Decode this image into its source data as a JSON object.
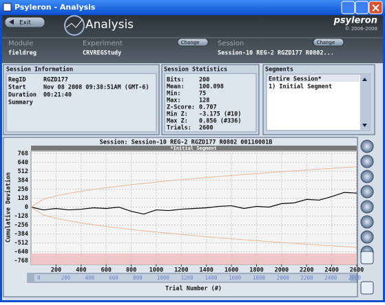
{
  "window_title": "Psyleron - Analysis",
  "header": {
    "exit": "Exit",
    "app_name": "Analysis",
    "brand": "psyleron",
    "copyright": "© 2006-2008"
  },
  "selectors": {
    "module": {
      "label": "Module",
      "value": "fieldreg"
    },
    "experiment": {
      "label": "Experiment",
      "value": "CRVREGStudy",
      "button": "Change"
    },
    "session": {
      "label": "Session",
      "value": "Session-10 REG-2 RGZD177 R0802...",
      "button": "Change"
    }
  },
  "session_info": {
    "title": "Session Information",
    "rows": [
      [
        "RegID",
        "RGZD177"
      ],
      [
        "Start",
        "Nov 08 2008 09:38:51AM (GMT-6)"
      ],
      [
        "Duration",
        "00:21:40"
      ],
      [
        "Summary"
      ]
    ]
  },
  "statistics": {
    "title": "Session Statistics",
    "rows": [
      [
        "Bits:",
        "200"
      ],
      [
        "Mean:",
        "100.098"
      ],
      [
        "Min:",
        "75"
      ],
      [
        "Max:",
        "128"
      ],
      [
        "Z-Score:",
        "0.707"
      ],
      [
        "Min Z:",
        "-3.175 (#10)"
      ],
      [
        "Max Z:",
        "0.856 (#336)"
      ],
      [
        "Trials:",
        "2600"
      ]
    ]
  },
  "segments": {
    "title": "Segments",
    "items": [
      "Entire Session*",
      "1) Initial Segment"
    ]
  },
  "scrollbar": {
    "ticks": [
      "0",
      "200",
      "400",
      "600",
      "800",
      "1000",
      "1200",
      "1400",
      "1600",
      "1800",
      "2000",
      "2200",
      "2400",
      "2600"
    ]
  },
  "chart_data": {
    "type": "line",
    "title": "Session: Session-10 REG-2 RGZD177 R0802 00110001B",
    "segment_label": "*Initial Segment",
    "x_label": "Trial Number (#)",
    "y_label": "Cumulative Deviation",
    "x": [
      0,
      100,
      200,
      300,
      400,
      500,
      600,
      700,
      800,
      900,
      1000,
      1100,
      1200,
      1300,
      1400,
      1500,
      1600,
      1700,
      1800,
      1900,
      2000,
      2100,
      2200,
      2300,
      2400,
      2500,
      2600
    ],
    "series": [
      {
        "color": "#000000",
        "values": [
          0,
          -40,
          -20,
          -40,
          -30,
          -10,
          -20,
          0,
          -60,
          -100,
          -40,
          -50,
          -30,
          -20,
          -10,
          10,
          20,
          -20,
          10,
          0,
          50,
          60,
          110,
          100,
          150,
          210,
          200
        ]
      },
      {
        "color": "#e8b896",
        "values": [
          0,
          113,
          160,
          196,
          226,
          253,
          277,
          299,
          320,
          339,
          357,
          375,
          391,
          407,
          423,
          438,
          452,
          466,
          479,
          493,
          505,
          518,
          530,
          542,
          553,
          565,
          576
        ]
      },
      {
        "color": "#e8b896",
        "values": [
          0,
          -113,
          -160,
          -196,
          -226,
          -253,
          -277,
          -299,
          -320,
          -339,
          -357,
          -375,
          -391,
          -407,
          -423,
          -438,
          -452,
          -466,
          -479,
          -493,
          -505,
          -518,
          -530,
          -542,
          -553,
          -565,
          -576
        ]
      }
    ],
    "xlim": [
      0,
      2600
    ],
    "ylim": [
      -820,
      800
    ],
    "xticks": [
      200,
      400,
      600,
      800,
      1000,
      1200,
      1400,
      1600,
      1800,
      2000,
      2200,
      2400,
      2600
    ],
    "yticks": [
      768,
      640,
      512,
      384,
      256,
      128,
      0,
      -128,
      -256,
      -384,
      -512,
      -640,
      -768
    ],
    "grid": true
  }
}
